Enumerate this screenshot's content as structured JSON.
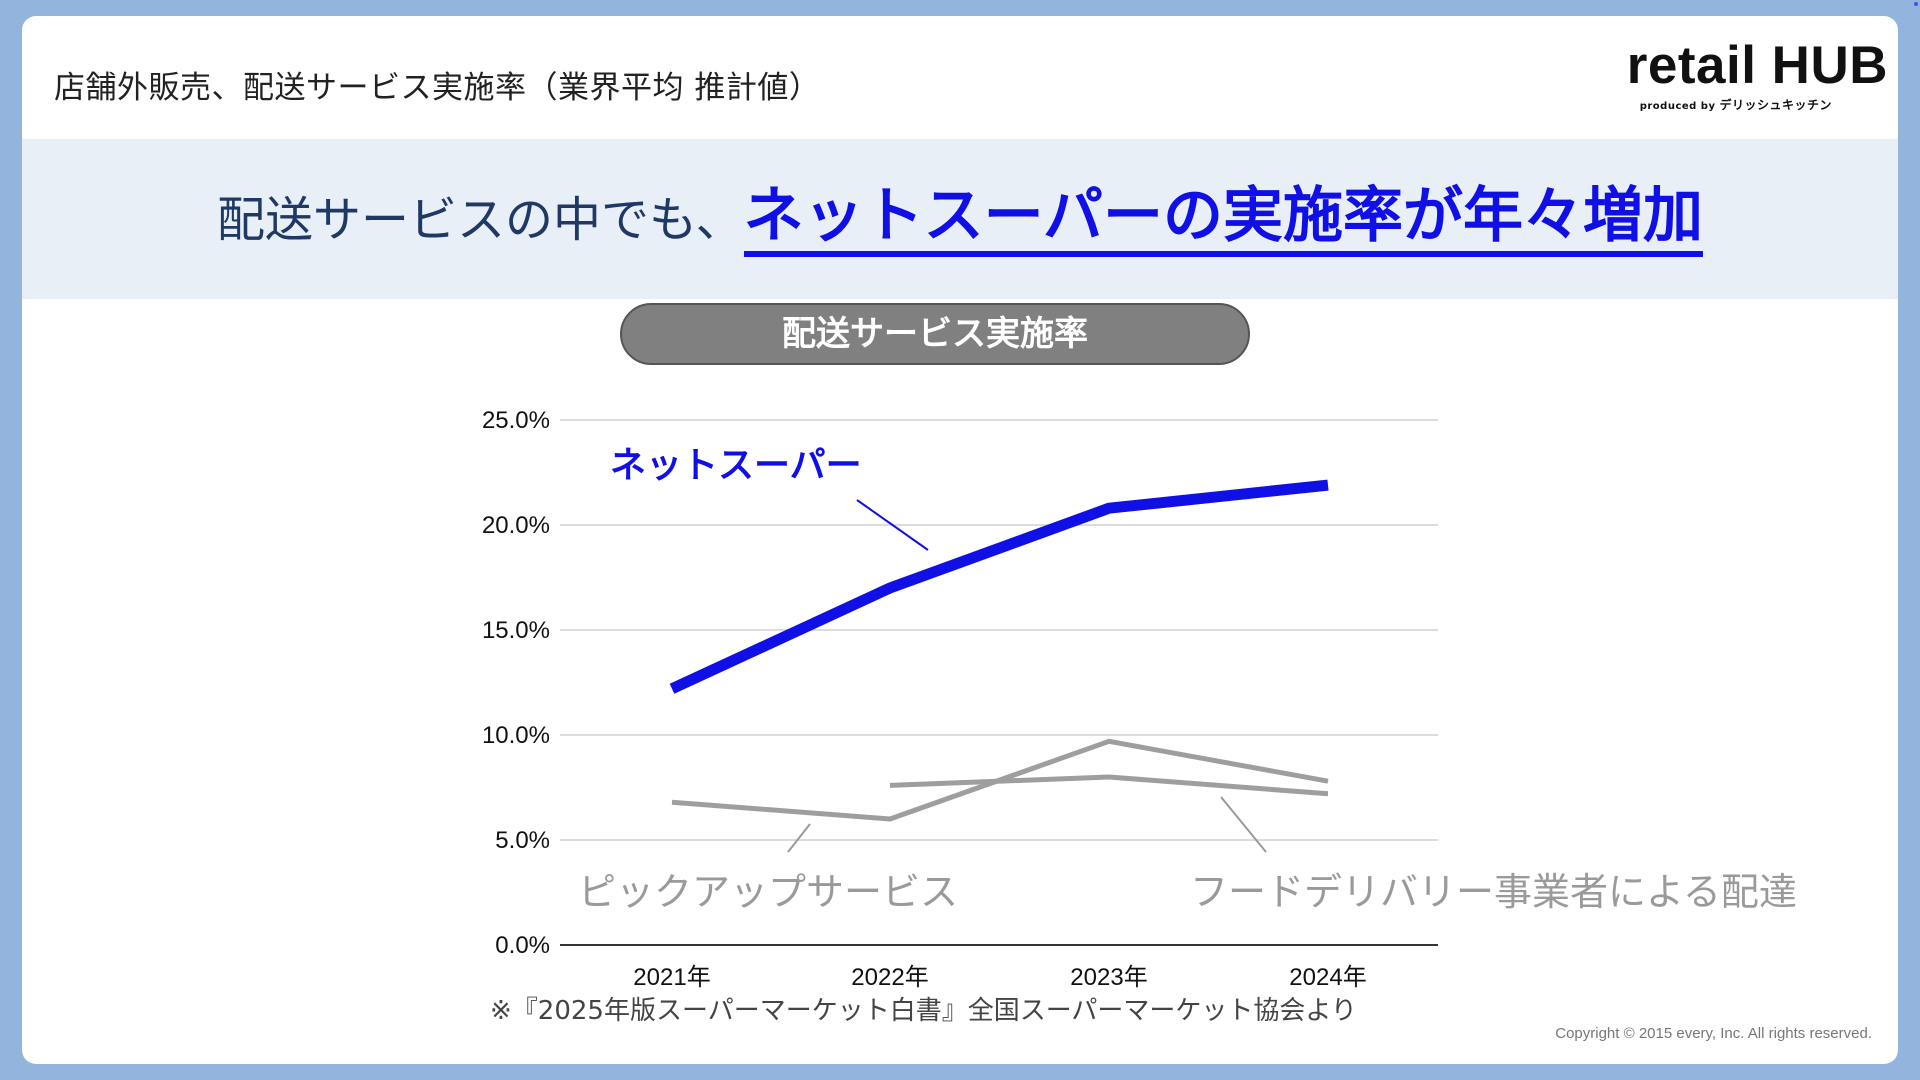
{
  "header": {
    "title": "店舗外販売、配送サービス実施率（業界平均 推計値）"
  },
  "logo": {
    "main": "retail HUB",
    "produced_by": "produced by",
    "brand": "デリッシュキッチン"
  },
  "banner": {
    "lead": "配送サービスの中でも、",
    "emphasis": "ネットスーパーの実施率が年々増加"
  },
  "chart_title": "配送サービス実施率",
  "chart_data": {
    "type": "line",
    "title": "配送サービス実施率",
    "categories": [
      "2021年",
      "2022年",
      "2023年",
      "2024年"
    ],
    "ylim": [
      0,
      25
    ],
    "yticks": [
      "0.0%",
      "5.0%",
      "10.0%",
      "15.0%",
      "20.0%",
      "25.0%"
    ],
    "ytick_values": [
      0,
      5,
      10,
      15,
      20,
      25
    ],
    "grid": true,
    "series": [
      {
        "name": "ネットスーパー",
        "values": [
          12.2,
          17.0,
          20.8,
          21.9
        ],
        "color": "#1010e6"
      },
      {
        "name": "ピックアップサービス",
        "values": [
          6.8,
          6.0,
          9.7,
          7.8
        ],
        "color": "#9e9e9e"
      },
      {
        "name": "フードデリバリー事業者による配達",
        "values": [
          null,
          7.6,
          8.0,
          7.2
        ],
        "color": "#9e9e9e"
      }
    ]
  },
  "source_note": "※『2025年版スーパーマーケット白書』全国スーパーマーケット協会より",
  "copyright": "Copyright © 2015 every, Inc. All rights reserved.",
  "colors": {
    "accent": "#1010e6",
    "banner_bg": "#e8eff7",
    "frame": "#93b4dd",
    "pill": "#808080",
    "series_gray": "#9e9e9e"
  }
}
